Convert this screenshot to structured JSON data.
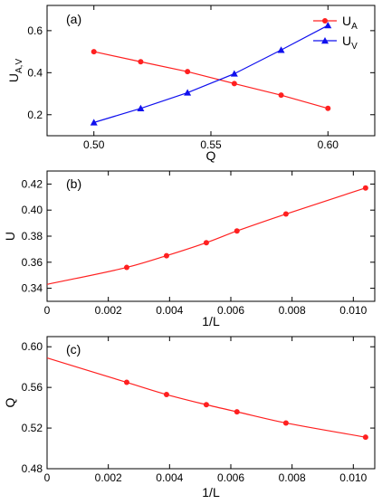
{
  "chart_data": [
    {
      "type": "line",
      "panel_label": "(a)",
      "xlabel": "Q",
      "ylabel": {
        "main": "U",
        "sub": "A,V"
      },
      "xlim": [
        0.48,
        0.62
      ],
      "ylim": [
        0.1,
        0.72
      ],
      "xticks": [
        0.5,
        0.55,
        0.6
      ],
      "xtick_labels": [
        "0.50",
        "0.55",
        "0.60"
      ],
      "yticks": [
        0.2,
        0.4,
        0.6
      ],
      "ytick_labels": [
        "0.2",
        "0.4",
        "0.6"
      ],
      "legend_position": "top-right",
      "series": [
        {
          "name": {
            "main": "U",
            "sub": "A"
          },
          "color": "#ff2020",
          "marker": "circle",
          "x": [
            0.5,
            0.52,
            0.54,
            0.56,
            0.58,
            0.6
          ],
          "y": [
            0.5,
            0.452,
            0.405,
            0.348,
            0.293,
            0.23
          ]
        },
        {
          "name": {
            "main": "U",
            "sub": "V"
          },
          "color": "#1010ee",
          "marker": "triangle",
          "x": [
            0.5,
            0.52,
            0.54,
            0.56,
            0.58,
            0.6
          ],
          "y": [
            0.163,
            0.23,
            0.305,
            0.395,
            0.508,
            0.625
          ]
        }
      ]
    },
    {
      "type": "line",
      "panel_label": "(b)",
      "xlabel": "1/L",
      "ylabel": "U",
      "xlim": [
        0,
        0.0107
      ],
      "ylim": [
        0.33,
        0.43
      ],
      "xticks": [
        0,
        0.002,
        0.004,
        0.006,
        0.008,
        0.01
      ],
      "xtick_labels": [
        "0",
        "0.002",
        "0.004",
        "0.006",
        "0.008",
        "0.010"
      ],
      "yticks": [
        0.34,
        0.36,
        0.38,
        0.4,
        0.42
      ],
      "ytick_labels": [
        "0.34",
        "0.36",
        "0.38",
        "0.40",
        "0.42"
      ],
      "series": [
        {
          "color": "#ff2020",
          "marker": "circle",
          "x": [
            0.0026,
            0.0039,
            0.0052,
            0.0062,
            0.0078,
            0.0104
          ],
          "y": [
            0.356,
            0.365,
            0.375,
            0.384,
            0.397,
            0.417
          ]
        }
      ],
      "fit": {
        "color": "#ff2020",
        "x": [
          0,
          0.0104
        ],
        "intercept": 0.343
      }
    },
    {
      "type": "line",
      "panel_label": "(c)",
      "xlabel": "1/L",
      "ylabel": "Q",
      "xlim": [
        0,
        0.0107
      ],
      "ylim": [
        0.48,
        0.61
      ],
      "xticks": [
        0,
        0.002,
        0.004,
        0.006,
        0.008,
        0.01
      ],
      "xtick_labels": [
        "0",
        "0.002",
        "0.004",
        "0.006",
        "0.008",
        "0.010"
      ],
      "yticks": [
        0.48,
        0.52,
        0.56,
        0.6
      ],
      "ytick_labels": [
        "0.48",
        "0.52",
        "0.56",
        "0.60"
      ],
      "series": [
        {
          "color": "#ff2020",
          "marker": "circle",
          "x": [
            0.0026,
            0.0039,
            0.0052,
            0.0062,
            0.0078,
            0.0104
          ],
          "y": [
            0.565,
            0.553,
            0.543,
            0.536,
            0.525,
            0.511
          ]
        }
      ],
      "fit": {
        "color": "#ff2020",
        "x": [
          0,
          0.0104
        ],
        "intercept": 0.589
      }
    }
  ]
}
